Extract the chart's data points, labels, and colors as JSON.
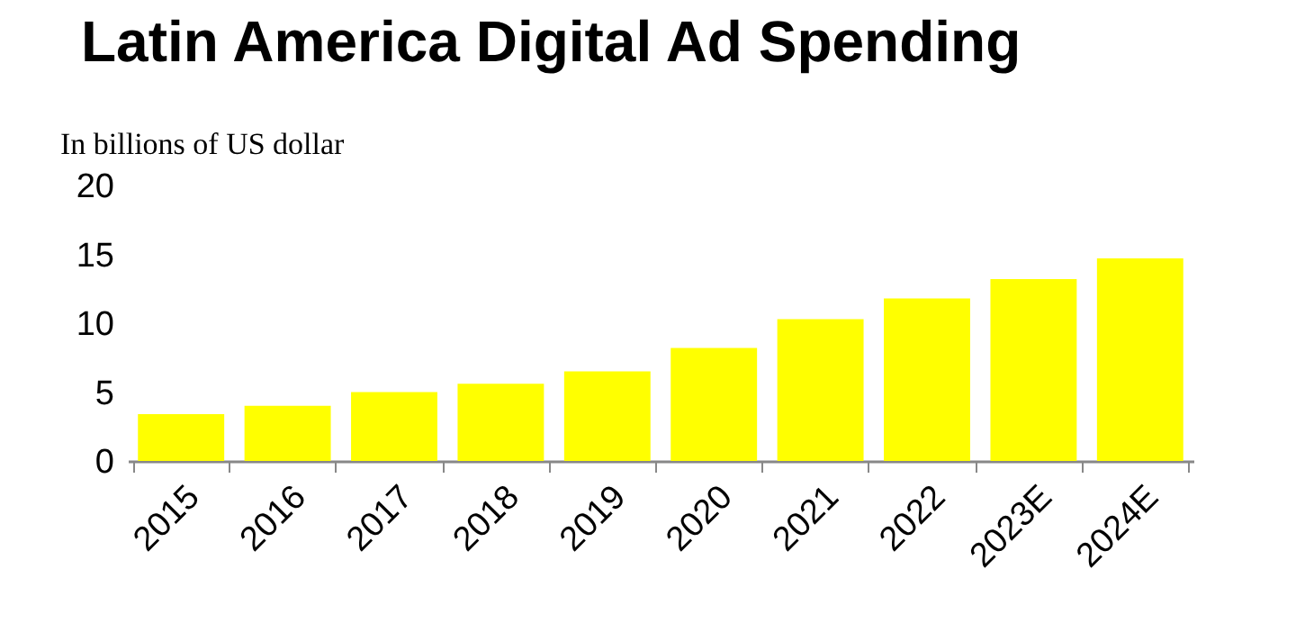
{
  "chart_data": {
    "type": "bar",
    "title": "Latin America Digital Ad Spending",
    "ylabel": "In billions of US dollar",
    "categories": [
      "2015",
      "2016",
      "2017",
      "2018",
      "2019",
      "2020",
      "2021",
      "2022",
      "2023E",
      "2024E"
    ],
    "values": [
      3.4,
      4.0,
      5.0,
      5.6,
      6.5,
      8.2,
      10.3,
      11.8,
      13.2,
      14.7
    ],
    "color": "#ffff00",
    "ylim": [
      0,
      20
    ],
    "yticks": [
      0,
      5,
      10,
      15,
      20
    ]
  }
}
